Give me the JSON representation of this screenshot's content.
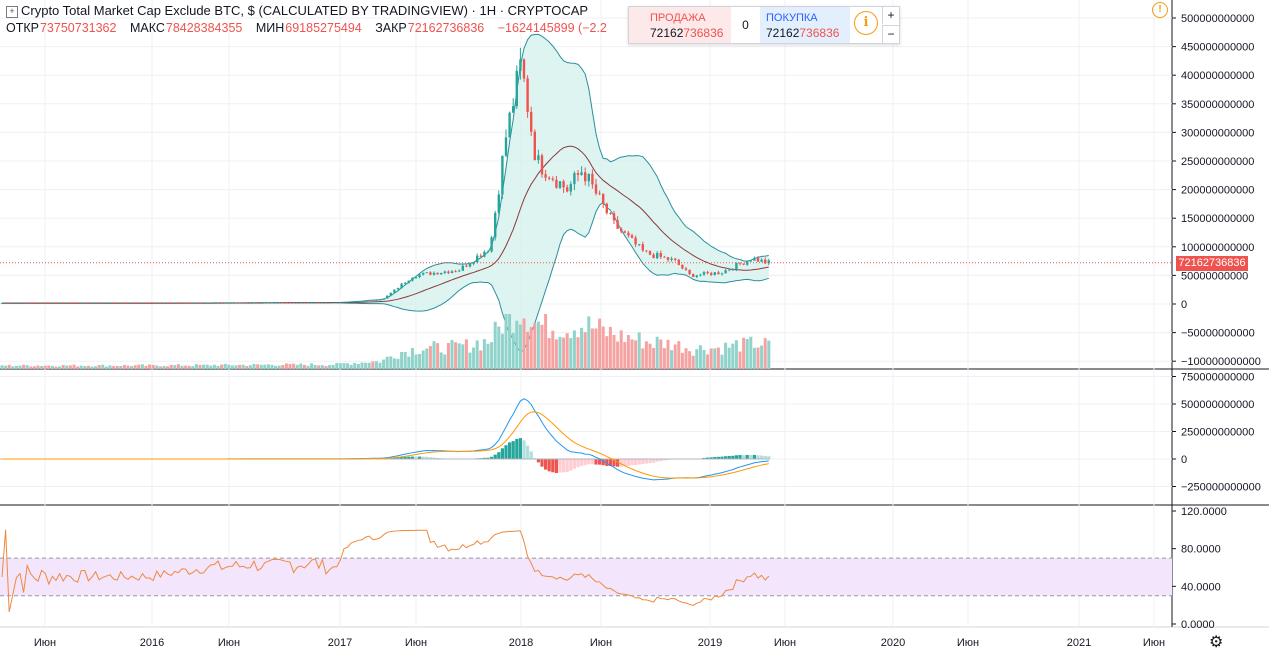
{
  "legend": {
    "icon": "expand-icon",
    "title": "Crypto Total Market Cap Exclude BTC, $ (CALCULATED BY TRADINGVIEW) · 1Н · CRYPTOCAP",
    "open_label": "ОТКР",
    "open_value": "73750731362",
    "high_label": "МАКС",
    "high_value": "78428384355",
    "low_label": "МИН",
    "low_value": "69185275494",
    "close_label": "ЗАКР",
    "close_value": "72162736836",
    "change": "−1624145899 (−2.2"
  },
  "trade": {
    "sell_label": "ПРОДАЖА",
    "sell_price_a": "72162",
    "sell_price_b": "736836",
    "spread": "0",
    "buy_label": "ПОКУПКА",
    "buy_price_a": "72162",
    "buy_price_b": "736836",
    "info": "i",
    "plus": "+",
    "minus": "−"
  },
  "warning_icon": "!",
  "current_price_label": "72162736836",
  "settings_icon": "⚙",
  "chart_data": [
    {
      "type": "candlestick",
      "title": "Crypto Total Market Cap Exclude BTC, $",
      "price_axis_ticks": [
        "500000000000",
        "450000000000",
        "400000000000",
        "350000000000",
        "300000000000",
        "250000000000",
        "200000000000",
        "150000000000",
        "100000000000",
        "50000000000",
        "0",
        "−50000000000",
        "−100000000000"
      ],
      "current_price": 72162736836,
      "time_axis_labels": [
        "Июн",
        "2016",
        "Июн",
        "2017",
        "Июн",
        "2018",
        "Июн",
        "2019",
        "Июн",
        "2020",
        "Июн",
        "2021",
        "Июн"
      ],
      "colors": {
        "up": "#26a69a",
        "down": "#ef5350",
        "bb_band": "#2a8f9c",
        "bb_basis": "#8b3a3a",
        "bb_fill": "#d6f1ee"
      },
      "close_series_approx": [
        {
          "t": "2015-07",
          "v": 1500000000
        },
        {
          "t": "2016-01",
          "v": 1500000000
        },
        {
          "t": "2016-07",
          "v": 2000000000
        },
        {
          "t": "2017-01",
          "v": 2500000000
        },
        {
          "t": "2017-04",
          "v": 8000000000
        },
        {
          "t": "2017-06",
          "v": 50000000000
        },
        {
          "t": "2017-09",
          "v": 60000000000
        },
        {
          "t": "2017-11",
          "v": 100000000000
        },
        {
          "t": "2017-12",
          "v": 290000000000
        },
        {
          "t": "2018-01",
          "v": 420000000000
        },
        {
          "t": "2018-02",
          "v": 250000000000
        },
        {
          "t": "2018-04",
          "v": 200000000000
        },
        {
          "t": "2018-05",
          "v": 235000000000
        },
        {
          "t": "2018-07",
          "v": 140000000000
        },
        {
          "t": "2018-09",
          "v": 90000000000
        },
        {
          "t": "2018-11",
          "v": 75000000000
        },
        {
          "t": "2018-12",
          "v": 50000000000
        },
        {
          "t": "2019-02",
          "v": 55000000000
        },
        {
          "t": "2019-04",
          "v": 80000000000
        },
        {
          "t": "2019-05",
          "v": 72162736836
        }
      ]
    },
    {
      "type": "macd",
      "price_axis_ticks": [
        "750000000000",
        "500000000000",
        "250000000000",
        "0",
        "−250000000000"
      ],
      "colors": {
        "macd": "#2196f3",
        "signal": "#ff9800",
        "hist_up": "#26a69a",
        "hist_down": "#ef5350"
      }
    },
    {
      "type": "rsi",
      "price_axis_ticks": [
        "120.0000",
        "80.0000",
        "40.0000",
        "0.0000"
      ],
      "band": [
        30,
        70
      ],
      "colors": {
        "line": "#f0883e",
        "band_fill": "#f3e5fb"
      }
    }
  ]
}
